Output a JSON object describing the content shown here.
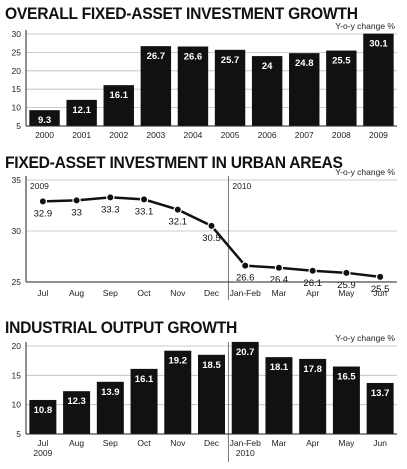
{
  "chart_data": [
    {
      "type": "bar",
      "title": "OVERALL FIXED-ASSET INVESTMENT GROWTH",
      "unit_label": "Y-o-y change %",
      "categories": [
        "2000",
        "2001",
        "2002",
        "2003",
        "2004",
        "2005",
        "2006",
        "2007",
        "2008",
        "2009"
      ],
      "values": [
        9.3,
        12.1,
        16.1,
        26.7,
        26.6,
        25.7,
        24,
        24.8,
        25.5,
        30.1
      ],
      "value_labels": [
        "9.3",
        "12.1",
        "16.1",
        "26.7",
        "26.6",
        "25.7",
        "24",
        "24.8",
        "25.5",
        "30.1"
      ],
      "ylim": [
        5,
        30
      ],
      "yticks": [
        "5",
        "10",
        "15",
        "20",
        "25",
        "30"
      ],
      "grid": true
    },
    {
      "type": "line",
      "title": "FIXED-ASSET INVESTMENT IN URBAN AREAS",
      "unit_label": "Y-o-y change %",
      "categories": [
        "Jul",
        "Aug",
        "Sep",
        "Oct",
        "Nov",
        "Dec",
        "Jan-Feb",
        "Mar",
        "Apr",
        "May",
        "Jun"
      ],
      "values": [
        32.9,
        33,
        33.3,
        33.1,
        32.1,
        30.5,
        26.6,
        26.4,
        26.1,
        25.9,
        25.5
      ],
      "value_labels": [
        "32.9",
        "33",
        "33.3",
        "33.1",
        "32.1",
        "30.5",
        "26.6",
        "26.4",
        "26.1",
        "25.9",
        "25.5"
      ],
      "ylim": [
        25,
        35
      ],
      "yticks": [
        "25",
        "30",
        "35"
      ],
      "year_labels": [
        "2009",
        "2010"
      ],
      "grid": true
    },
    {
      "type": "bar",
      "title": "INDUSTRIAL OUTPUT GROWTH",
      "unit_label": "Y-o-y change %",
      "categories": [
        "Jul",
        "Aug",
        "Sep",
        "Oct",
        "Nov",
        "Dec",
        "Jan-Feb",
        "Mar",
        "Apr",
        "May",
        "Jun"
      ],
      "values": [
        10.8,
        12.3,
        13.9,
        16.1,
        19.2,
        18.5,
        20.7,
        18.1,
        17.8,
        16.5,
        13.7
      ],
      "value_labels": [
        "10.8",
        "12.3",
        "13.9",
        "16.1",
        "19.2",
        "18.5",
        "20.7",
        "18.1",
        "17.8",
        "16.5",
        "13.7"
      ],
      "ylim": [
        5,
        20
      ],
      "yticks": [
        "5",
        "10",
        "15",
        "20"
      ],
      "year_labels": [
        "2009",
        "2010"
      ],
      "grid": true
    }
  ]
}
